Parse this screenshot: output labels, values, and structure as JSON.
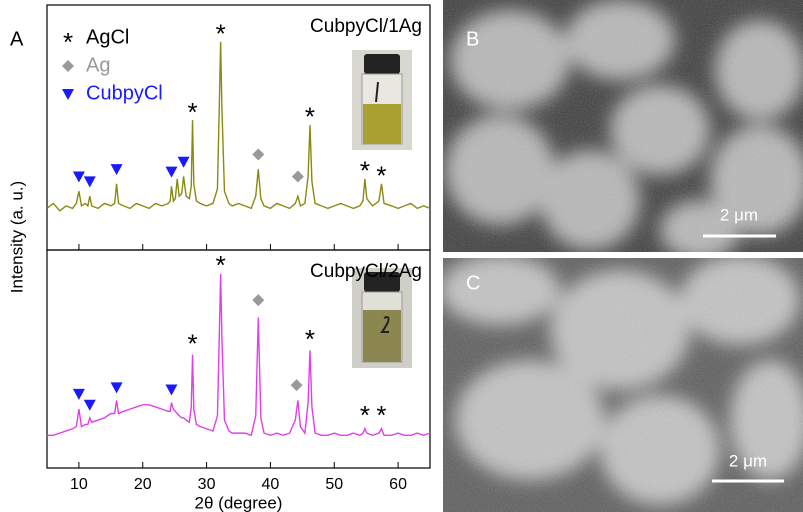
{
  "chart_data": [
    {
      "type": "line",
      "panel_label": "A",
      "title": "CubpyCl/1Ag",
      "ylabel": "Intensity (a. u.)",
      "xlim": [
        5,
        65
      ],
      "xticks": [
        10,
        20,
        30,
        40,
        50,
        60
      ],
      "ylim": [
        0,
        100
      ],
      "x": [
        5,
        6,
        7,
        8,
        9,
        9.6,
        10,
        10.4,
        11,
        11.4,
        11.7,
        12,
        13,
        14,
        15,
        15.6,
        15.9,
        16.2,
        17,
        18,
        19,
        20,
        21,
        22,
        23,
        24,
        24.3,
        24.5,
        24.8,
        25.1,
        25.4,
        25.7,
        26.1,
        26.4,
        26.8,
        27.3,
        27.6,
        27.8,
        28,
        28.4,
        29,
        30,
        31,
        31.7,
        32,
        32.2,
        32.4,
        32.8,
        33.5,
        34,
        35,
        36,
        37,
        37.7,
        38.1,
        38.5,
        39,
        40,
        41,
        42,
        43,
        43.9,
        44.3,
        44.7,
        45.4,
        45.9,
        46.2,
        46.5,
        47,
        48,
        49,
        50,
        51,
        52,
        53,
        54,
        54.5,
        54.8,
        55.1,
        56,
        57,
        57.4,
        57.8,
        59,
        60,
        61,
        62,
        63,
        64,
        65
      ],
      "series": [
        {
          "color": "#8a8a12",
          "values": [
            17,
            19,
            16,
            18,
            17,
            19,
            24,
            18,
            19,
            18,
            22,
            18,
            17,
            19,
            18,
            19,
            27,
            19,
            18,
            17,
            19,
            18,
            17,
            19,
            18,
            19,
            20,
            26,
            20,
            21,
            29,
            22,
            23,
            30,
            22,
            21,
            26,
            53,
            27,
            20,
            19,
            18,
            19,
            25,
            60,
            85,
            58,
            24,
            19,
            18,
            19,
            18,
            17,
            22,
            33,
            21,
            18,
            17,
            19,
            18,
            17,
            19,
            22,
            18,
            19,
            30,
            51,
            28,
            19,
            18,
            17,
            18,
            19,
            18,
            17,
            18,
            20,
            29,
            21,
            18,
            20,
            27,
            19,
            18,
            17,
            18,
            19,
            17,
            18,
            17
          ]
        }
      ],
      "markers": [
        {
          "name": "AgCl",
          "symbol": "*",
          "shape": "asterisk",
          "color": "#000000",
          "x": [
            27.8,
            32.2,
            46.2,
            54.8,
            57.4
          ],
          "y": [
            58,
            90,
            56,
            34,
            32
          ]
        },
        {
          "name": "Ag",
          "shape": "diamond",
          "color": "#999999",
          "x": [
            38.1,
            44.3
          ],
          "y": [
            39,
            30
          ]
        },
        {
          "name": "CubpyCl",
          "shape": "triangle",
          "color": "#1a1aff",
          "x": [
            10,
            11.7,
            15.9,
            24.5,
            26.4
          ],
          "y": [
            30,
            28,
            33,
            32,
            36
          ]
        }
      ]
    },
    {
      "type": "line",
      "title": "CubpyCl/2Ag",
      "xlabel": "2θ (degree)",
      "xlim": [
        5,
        65
      ],
      "xticks": [
        10,
        20,
        30,
        40,
        50,
        60
      ],
      "ylim": [
        0,
        100
      ],
      "x": [
        5,
        6,
        7,
        8,
        9,
        9.6,
        10,
        10.4,
        11,
        11.4,
        11.7,
        12,
        13,
        14,
        15,
        15.6,
        15.9,
        16.2,
        17,
        18,
        19,
        20,
        21,
        22,
        23,
        24,
        24.3,
        24.5,
        24.8,
        25.1,
        25.4,
        25.7,
        26.1,
        26.4,
        26.8,
        27.3,
        27.6,
        27.8,
        28,
        28.4,
        29,
        30,
        31,
        31.7,
        32,
        32.2,
        32.4,
        32.8,
        33.5,
        34,
        35,
        36,
        37,
        37.7,
        38.1,
        38.5,
        39,
        40,
        41,
        42,
        43,
        43.9,
        44.3,
        44.7,
        45.4,
        45.9,
        46.2,
        46.5,
        47,
        48,
        49,
        50,
        51,
        52,
        53,
        54,
        54.5,
        54.8,
        55.1,
        56,
        57,
        57.4,
        57.8,
        59,
        60,
        61,
        62,
        63,
        64,
        65
      ],
      "series": [
        {
          "color": "#e040e8",
          "values": [
            15,
            15,
            16,
            17,
            18,
            19,
            27,
            19,
            20,
            20,
            23,
            21,
            22,
            23,
            25,
            25,
            31,
            25,
            26,
            27,
            28,
            29,
            29,
            28,
            27,
            26,
            26,
            30,
            27,
            26,
            25,
            24,
            23,
            23,
            22,
            21,
            28,
            52,
            27,
            20,
            19,
            18,
            17,
            24,
            62,
            89,
            60,
            22,
            17,
            16,
            16,
            16,
            15,
            24,
            69,
            23,
            16,
            15,
            16,
            15,
            16,
            22,
            31,
            19,
            16,
            30,
            54,
            28,
            16,
            15,
            15,
            16,
            15,
            15,
            16,
            15,
            16,
            18,
            16,
            15,
            16,
            18,
            15,
            15,
            16,
            15,
            15,
            16,
            15,
            16
          ]
        }
      ],
      "markers": [
        {
          "symbol": "*",
          "shape": "asterisk",
          "color": "#000000",
          "x": [
            27.8,
            32.2,
            46.2,
            54.8,
            57.4
          ],
          "y": [
            59,
            95,
            61,
            26,
            26
          ]
        },
        {
          "shape": "diamond",
          "color": "#999999",
          "x": [
            38.1,
            44.1
          ],
          "y": [
            77,
            38
          ]
        },
        {
          "shape": "triangle",
          "color": "#1a1aff",
          "x": [
            10,
            11.7,
            15.9,
            24.5
          ],
          "y": [
            34,
            29,
            37,
            36
          ]
        }
      ]
    }
  ],
  "images": [
    {
      "label": "B",
      "scale_bar": "2 μm"
    },
    {
      "label": "C",
      "scale_bar": "2 μm"
    }
  ]
}
